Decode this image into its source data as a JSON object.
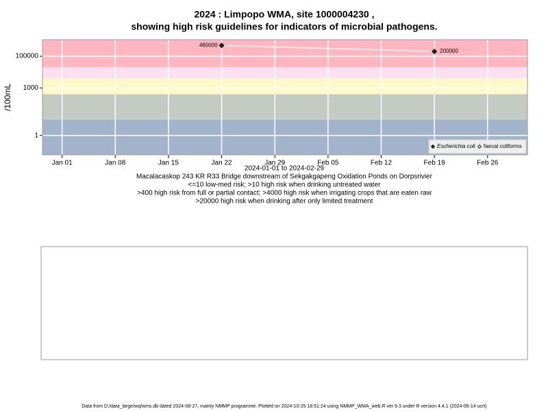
{
  "chart_data": {
    "type": "line",
    "title": "2024 : Limpopo WMA, site 1000004230 ,",
    "subtitle": "showing high risk guidelines for indicators of microbial pathogens.",
    "y_label": "/100mL",
    "x_label": "2024-01-01 to 2024-02-29",
    "notes": [
      "Macalacaskop 243 KR R33 Bridge downstream of Sekgakgapeng Oxidation Ponds on Dorpsrivier",
      "<=10 low-med risk; >10 high risk when drinking untreated water",
      ">400 high risk from full or partial contact; >4000 high risk when irrigating crops that are eaten raw",
      ">20000 high risk when drinking after only limited treatment"
    ],
    "footer": "Data from D:/data_large/wq/wms.db dated 2024-08-27, mainly NMMP programme. Plotted on 2024-10-25 18:51:24 using NMMP_WMA_web.R ver 9.3 under R version 4.4.1 (2024-06-14 ucrt)",
    "log_y": true,
    "grid": true,
    "legend": "bottom-right",
    "x": [
      "2024-01-22",
      "2024-02-19"
    ],
    "series": [
      {
        "name": "Escherichia coli",
        "color": "#222222",
        "line_color": "#e8e8e8",
        "filled": true,
        "values": [
          480000,
          200000
        ]
      },
      {
        "name": "faecal coliforms",
        "color": "#222222",
        "filled": false,
        "values": [
          null,
          null
        ]
      }
    ],
    "risk_bands": [
      {
        "min": null,
        "max": 10,
        "color": "#a3b3cc"
      },
      {
        "min": 10,
        "max": 400,
        "color": "#c3cbc3"
      },
      {
        "min": 400,
        "max": 4000,
        "color": "#fff8c8"
      },
      {
        "min": 4000,
        "max": 20000,
        "color": "#fbe0f2"
      },
      {
        "min": 20000,
        "max": null,
        "color": "#ffb6c1"
      }
    ],
    "xlim": [
      "2023-12-29T10:00",
      "2024-03-02T06:00"
    ],
    "xticks": [
      {
        "value": "2024-01-01",
        "label": "Jan 01"
      },
      {
        "value": "2024-01-08",
        "label": "Jan 08"
      },
      {
        "value": "2024-01-15",
        "label": "Jan 15"
      },
      {
        "value": "2024-01-22",
        "label": "Jan 22"
      },
      {
        "value": "2024-01-29",
        "label": "Jan 29"
      },
      {
        "value": "2024-02-05",
        "label": "Feb 05"
      },
      {
        "value": "2024-02-12",
        "label": "Feb 12"
      },
      {
        "value": "2024-02-19",
        "label": "Feb 19"
      },
      {
        "value": "2024-02-26",
        "label": "Feb 26"
      }
    ],
    "ylim": [
      0.06,
      1100000
    ],
    "yticks": [
      1,
      1000,
      100000
    ]
  }
}
